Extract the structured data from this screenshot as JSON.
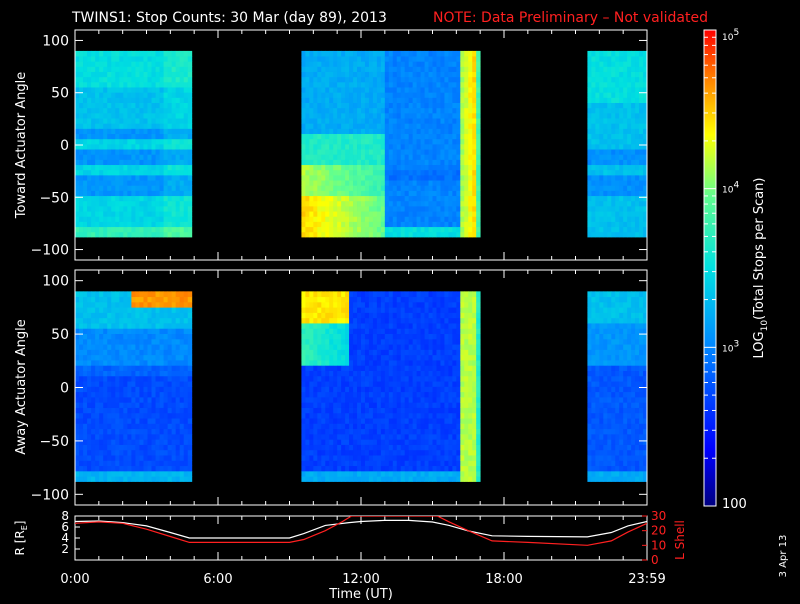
{
  "title": {
    "main": "TWINS1: Stop Counts: 30 Mar (day  89), 2013",
    "note": "NOTE: Data Preliminary – Not validated",
    "note_color": "#ff2020"
  },
  "side_label": "3 Apr 13",
  "chart_data": [
    {
      "type": "heatmap",
      "panel": "toward",
      "ylabel": "Toward Actuator Angle",
      "ylim": [
        -110,
        110
      ],
      "yticks": [
        "100",
        "50",
        "0",
        "−50",
        "−100"
      ],
      "ytick_values": [
        100,
        50,
        0,
        -50,
        -100
      ],
      "x_unit": "hours",
      "xlim": [
        0,
        24
      ],
      "angle_range": [
        -88,
        90
      ],
      "data_segments": [
        [
          0,
          4.9
        ],
        [
          9.5,
          17
        ],
        [
          21.5,
          24
        ]
      ],
      "colorscale": "log"
    },
    {
      "type": "heatmap",
      "panel": "away",
      "ylabel": "Away Actuator Angle",
      "ylim": [
        -110,
        110
      ],
      "yticks": [
        "100",
        "50",
        "0",
        "−50",
        "−100"
      ],
      "ytick_values": [
        100,
        50,
        0,
        -50,
        -100
      ],
      "x_unit": "hours",
      "xlim": [
        0,
        24
      ],
      "angle_range": [
        -88,
        90
      ],
      "data_segments": [
        [
          0,
          4.9
        ],
        [
          9.5,
          17
        ],
        [
          21.5,
          24
        ]
      ],
      "colorscale": "log"
    },
    {
      "type": "line",
      "panel": "orbit",
      "ylabel_left": "R [R",
      "ylabel_left_sub": "E",
      "ylabel_left_end": "]",
      "ylabel_right": "L Shell",
      "yticks_left": [
        "8",
        "6",
        "4",
        "2"
      ],
      "ytick_values_left": [
        8,
        6,
        4,
        2
      ],
      "yticks_right": [
        "30",
        "20",
        "10",
        "0"
      ],
      "ytick_values_right": [
        30,
        20,
        10,
        0
      ],
      "ylim_left": [
        0,
        8
      ],
      "ylim_right": [
        0,
        30
      ],
      "xlabel": "Time (UT)",
      "xticks": [
        "0:00",
        "6:00",
        "12:00",
        "18:00",
        "23:59"
      ],
      "xtick_values": [
        0,
        6,
        12,
        18,
        24
      ],
      "series": [
        {
          "axis": "left",
          "color": "#ffffff",
          "x": [
            0,
            1,
            2,
            3,
            4,
            4.8,
            6,
            9,
            9.6,
            10.5,
            11.5,
            12,
            13,
            14,
            15,
            15.7,
            16.5,
            17.5,
            19,
            21.5,
            22.5,
            23.2,
            24
          ],
          "y": [
            7.0,
            7.1,
            6.8,
            6.2,
            5.0,
            4.0,
            4.0,
            4.0,
            4.8,
            6.3,
            6.8,
            7.0,
            7.2,
            7.2,
            6.9,
            6.3,
            5.3,
            4.4,
            4.3,
            4.2,
            5.0,
            6.2,
            7.0
          ]
        },
        {
          "axis": "right",
          "color": "#ff2020",
          "x": [
            0,
            1,
            2,
            3,
            4,
            4.8,
            6,
            9,
            9.6,
            10.5,
            11.2,
            11.6,
            15.2,
            15.7,
            16.5,
            17.5,
            19,
            21.5,
            22.5,
            23.2,
            24
          ],
          "y": [
            25,
            26,
            25,
            21,
            16,
            12,
            12,
            12,
            14,
            20,
            26,
            30,
            30,
            26,
            20,
            13,
            12,
            10,
            13,
            19,
            25
          ]
        }
      ]
    }
  ],
  "colorbar": {
    "scale": "log",
    "range": [
      100,
      100000
    ],
    "tick_labels": [
      "10",
      "10",
      "10"
    ],
    "tick_exps": [
      "5",
      "4",
      "3"
    ],
    "tick_values": [
      100000,
      10000,
      1000
    ],
    "min_label": "100",
    "label_pre": "LOG",
    "label_sub": "10",
    "label_post": "(Total Stops per Scan)"
  }
}
